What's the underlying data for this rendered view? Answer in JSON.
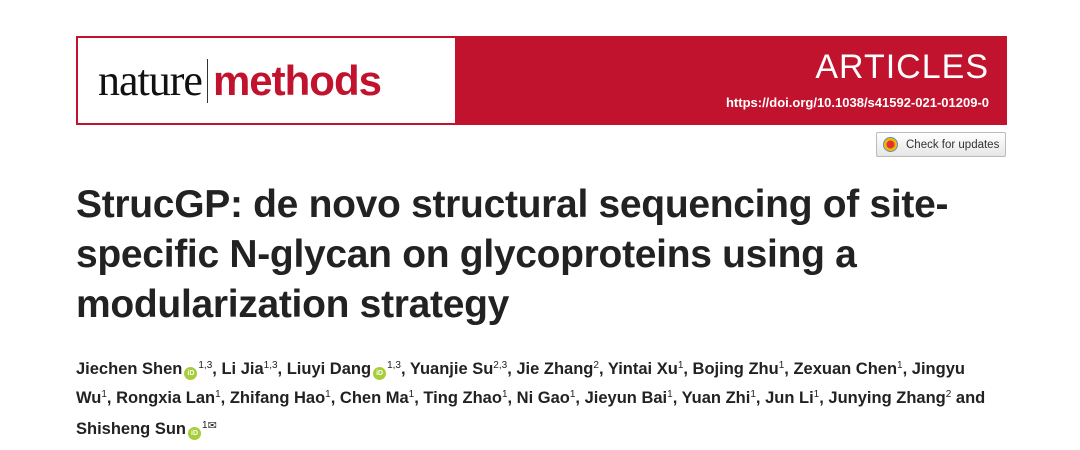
{
  "journal": {
    "name_part1": "nature",
    "name_part2": "methods",
    "section": "ARTICLES",
    "doi": "https://doi.org/10.1038/s41592-021-01209-0",
    "brand_color": "#c1132d"
  },
  "check_updates": {
    "label": "Check for updates",
    "icon": "crossmark-icon"
  },
  "title": "StrucGP: de novo structural sequencing of site-specific N-glycan on glycoproteins using a modularization strategy",
  "authors": [
    {
      "name": "Jiechen Shen",
      "orcid": true,
      "aff": "1,3",
      "sep": ", "
    },
    {
      "name": "Li Jia",
      "orcid": false,
      "aff": "1,3",
      "sep": ", "
    },
    {
      "name": "Liuyi Dang",
      "orcid": true,
      "aff": "1,3",
      "sep": ", "
    },
    {
      "name": "Yuanjie Su",
      "orcid": false,
      "aff": "2,3",
      "sep": ", "
    },
    {
      "name": "Jie Zhang",
      "orcid": false,
      "aff": "2",
      "sep": ", "
    },
    {
      "name": "Yintai Xu",
      "orcid": false,
      "aff": "1",
      "sep": ", "
    },
    {
      "name": "Bojing Zhu",
      "orcid": false,
      "aff": "1",
      "sep": ", "
    },
    {
      "name": "Zexuan Chen",
      "orcid": false,
      "aff": "1",
      "sep": ", "
    },
    {
      "name": "Jingyu Wu",
      "orcid": false,
      "aff": "1",
      "sep": ", "
    },
    {
      "name": "Rongxia Lan",
      "orcid": false,
      "aff": "1",
      "sep": ", "
    },
    {
      "name": "Zhifang Hao",
      "orcid": false,
      "aff": "1",
      "sep": ", "
    },
    {
      "name": "Chen Ma",
      "orcid": false,
      "aff": "1",
      "sep": ", "
    },
    {
      "name": "Ting Zhao",
      "orcid": false,
      "aff": "1",
      "sep": ", "
    },
    {
      "name": "Ni Gao",
      "orcid": false,
      "aff": "1",
      "sep": ", "
    },
    {
      "name": "Jieyun Bai",
      "orcid": false,
      "aff": "1",
      "sep": ", "
    },
    {
      "name": "Yuan Zhi",
      "orcid": false,
      "aff": "1",
      "sep": ", "
    },
    {
      "name": "Jun Li",
      "orcid": false,
      "aff": "1",
      "sep": ", "
    },
    {
      "name": "Junying Zhang",
      "orcid": false,
      "aff": "2",
      "sep": " and "
    },
    {
      "name": "Shisheng Sun",
      "orcid": true,
      "aff": "1",
      "sep": "",
      "corresponding": true
    }
  ],
  "orcid_label": "iD",
  "mail_glyph": "✉"
}
